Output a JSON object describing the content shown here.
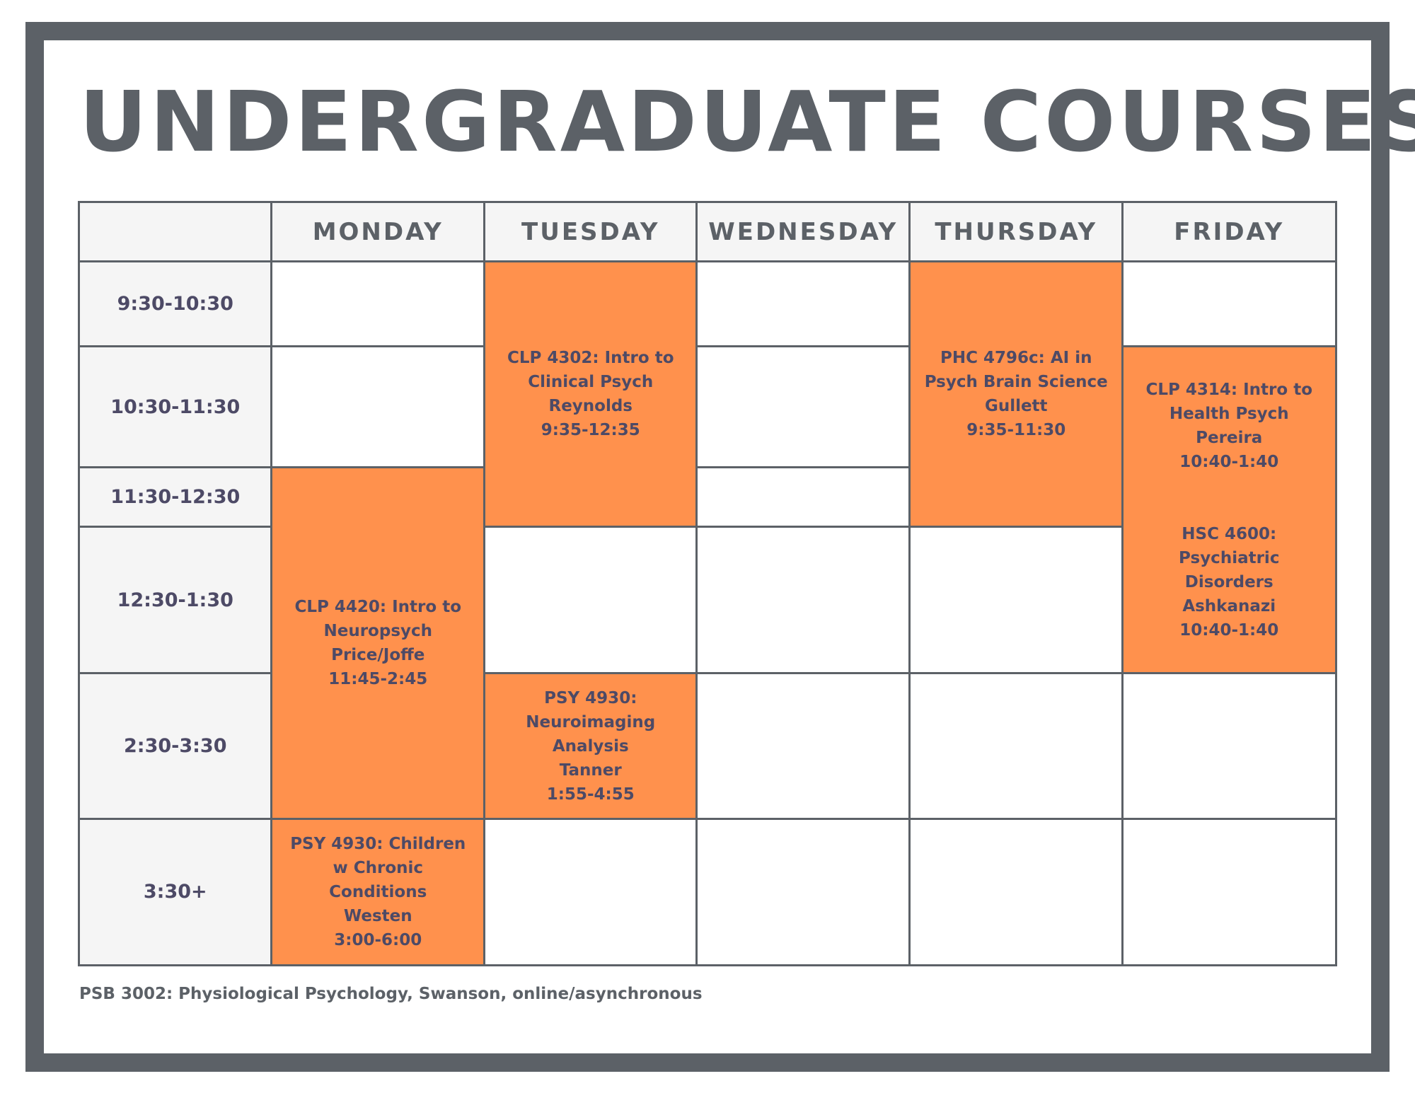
{
  "title": "UNDERGRADUATE COURSES",
  "days": [
    "MONDAY",
    "TUESDAY",
    "WEDNESDAY",
    "THURSDAY",
    "FRIDAY"
  ],
  "times": [
    "9:30-10:30",
    "10:30-11:30",
    "11:30-12:30",
    "12:30-1:30",
    "2:30-3:30",
    "3:30+"
  ],
  "highlight_color": "#ff914d",
  "border_color": "#5c6167",
  "courses": {
    "tue_clp4302": [
      "CLP 4302: Intro to",
      "Clinical Psych",
      "Reynolds",
      "9:35-12:35"
    ],
    "thu_phc4796c": [
      "PHC 4796c: AI in",
      "Psych Brain Science",
      "Gullett",
      "9:35-11:30"
    ],
    "fri_clp4314": [
      "CLP 4314: Intro to",
      "Health Psych",
      "Pereira",
      "10:40-1:40"
    ],
    "fri_hsc4600": [
      "HSC 4600:",
      "Psychiatric",
      "Disorders",
      "Ashkanazi",
      "10:40-1:40"
    ],
    "mon_clp4420": [
      "CLP 4420: Intro to",
      "Neuropsych",
      "Price/Joffe",
      "11:45-2:45"
    ],
    "tue_psy4930": [
      "PSY 4930:",
      "Neuroimaging",
      "Analysis",
      "Tanner",
      "1:55-4:55"
    ],
    "mon_psy4930": [
      "PSY 4930: Children",
      "w Chronic",
      "Conditions",
      "Westen",
      "3:00-6:00"
    ]
  },
  "footer": "PSB 3002: Physiological Psychology, Swanson, online/asynchronous"
}
